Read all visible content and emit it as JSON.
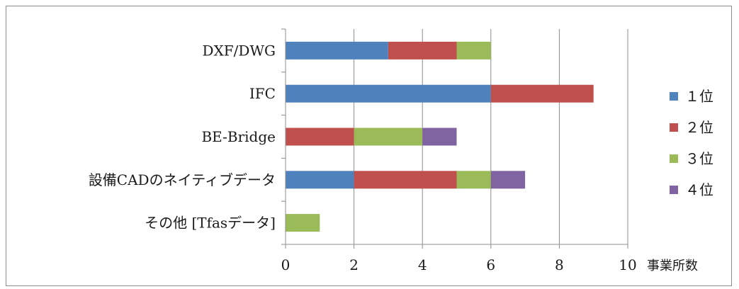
{
  "chart_data": {
    "type": "bar",
    "orientation": "horizontal",
    "stacked": true,
    "categories": [
      "DXF/DWG",
      "IFC",
      "BE-Bridge",
      "設備CADのネイティブデータ",
      "その他 [Tfasデータ]"
    ],
    "series": [
      {
        "name": "１位",
        "values": [
          3,
          6,
          0,
          2,
          0
        ],
        "color": "#4f81bd"
      },
      {
        "name": "２位",
        "values": [
          2,
          3,
          2,
          3,
          0
        ],
        "color": "#c0504d"
      },
      {
        "name": "３位",
        "values": [
          1,
          0,
          2,
          1,
          1
        ],
        "color": "#9bbb59"
      },
      {
        "name": "４位",
        "values": [
          0,
          0,
          1,
          1,
          0
        ],
        "color": "#8064a2"
      }
    ],
    "xlim": [
      0,
      10
    ],
    "xticks": [
      0,
      2,
      4,
      6,
      8,
      10
    ],
    "xlabel": "事業所数",
    "grid": "vertical",
    "legend_position": "right"
  }
}
